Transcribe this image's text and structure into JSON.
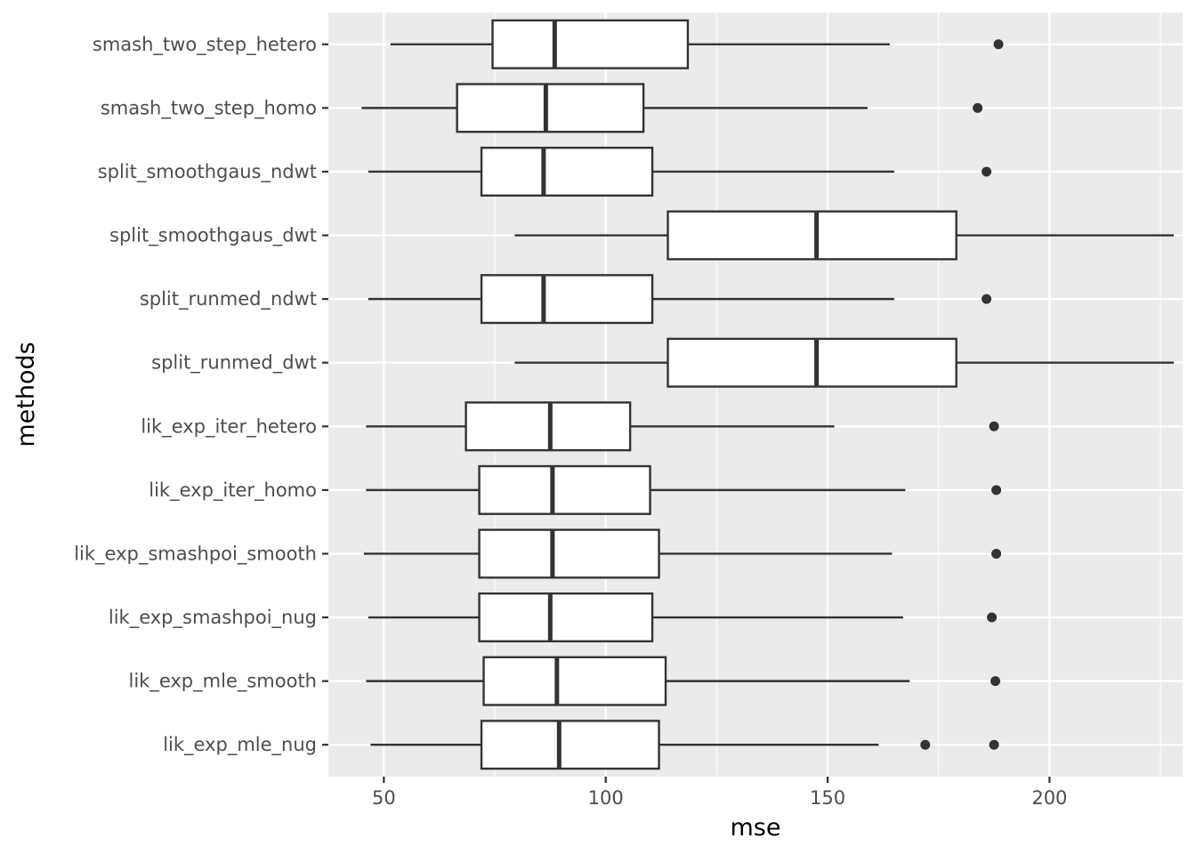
{
  "chart_data": {
    "type": "boxplot",
    "orientation": "horizontal",
    "xlabel": "mse",
    "ylabel": "methods",
    "xlim": [
      37.5,
      230
    ],
    "x_ticks": [
      50,
      100,
      150,
      200
    ],
    "x_minor_ticks": [
      75,
      125,
      175,
      225
    ],
    "grid": true,
    "colors": {
      "panel_background": "#ebebeb",
      "grid": "#ffffff",
      "box_fill": "#ffffff",
      "box_stroke": "#333333",
      "tick_label": "#4d4d4d"
    },
    "categories": [
      "smash_two_step_hetero",
      "smash_two_step_homo",
      "split_smoothgaus_ndwt",
      "split_smoothgaus_dwt",
      "split_runmed_ndwt",
      "split_runmed_dwt",
      "lik_exp_iter_hetero",
      "lik_exp_iter_homo",
      "lik_exp_smashpoi_smooth",
      "lik_exp_smashpoi_nug",
      "lik_exp_mle_smooth",
      "lik_exp_mle_nug"
    ],
    "boxes": [
      {
        "lower_whisker": 51.5,
        "q1": 74.5,
        "median": 88.5,
        "q3": 118.5,
        "upper_whisker": 164.0,
        "outliers": [
          188.5
        ]
      },
      {
        "lower_whisker": 45.0,
        "q1": 66.5,
        "median": 86.5,
        "q3": 108.5,
        "upper_whisker": 159.0,
        "outliers": [
          183.8
        ]
      },
      {
        "lower_whisker": 46.5,
        "q1": 72.0,
        "median": 86.0,
        "q3": 110.5,
        "upper_whisker": 165.0,
        "outliers": [
          185.8
        ]
      },
      {
        "lower_whisker": 79.5,
        "q1": 114.0,
        "median": 147.5,
        "q3": 179.0,
        "upper_whisker": 228.0,
        "outliers": []
      },
      {
        "lower_whisker": 46.5,
        "q1": 72.0,
        "median": 86.0,
        "q3": 110.5,
        "upper_whisker": 165.0,
        "outliers": [
          185.8
        ]
      },
      {
        "lower_whisker": 79.5,
        "q1": 114.0,
        "median": 147.5,
        "q3": 179.0,
        "upper_whisker": 228.0,
        "outliers": []
      },
      {
        "lower_whisker": 46.0,
        "q1": 68.5,
        "median": 87.5,
        "q3": 105.5,
        "upper_whisker": 151.5,
        "outliers": [
          187.5
        ]
      },
      {
        "lower_whisker": 46.0,
        "q1": 71.5,
        "median": 88.0,
        "q3": 110.0,
        "upper_whisker": 167.5,
        "outliers": [
          188.0
        ]
      },
      {
        "lower_whisker": 45.5,
        "q1": 71.5,
        "median": 88.0,
        "q3": 112.0,
        "upper_whisker": 164.5,
        "outliers": [
          188.0
        ]
      },
      {
        "lower_whisker": 46.5,
        "q1": 71.5,
        "median": 87.5,
        "q3": 110.5,
        "upper_whisker": 167.0,
        "outliers": [
          187.0
        ]
      },
      {
        "lower_whisker": 46.0,
        "q1": 72.5,
        "median": 89.0,
        "q3": 113.5,
        "upper_whisker": 168.5,
        "outliers": [
          187.8
        ]
      },
      {
        "lower_whisker": 47.0,
        "q1": 72.0,
        "median": 89.5,
        "q3": 112.0,
        "upper_whisker": 161.5,
        "outliers": [
          172.0,
          187.5
        ]
      }
    ]
  }
}
